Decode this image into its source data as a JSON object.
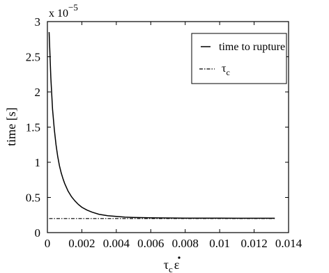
{
  "chart_data": {
    "type": "line",
    "title": "",
    "xlabel_main": "τ",
    "xlabel_sub": "c",
    "xlabel_sym": "ε",
    "ylabel": "time [s]",
    "y_multiplier_text": "x 10",
    "y_multiplier_exp": "−5",
    "xlim": [
      0,
      0.014
    ],
    "ylim": [
      0,
      3
    ],
    "y_scale_factor": 1e-05,
    "grid": false,
    "legend_position": "top-right",
    "x_ticks": [
      0,
      0.002,
      0.004,
      0.006,
      0.008,
      0.01,
      0.012,
      0.014
    ],
    "x_tick_labels": [
      "0",
      "0.002",
      "0.004",
      "0.006",
      "0.008",
      "0.01",
      "0.012",
      "0.014"
    ],
    "y_ticks": [
      0,
      0.5,
      1,
      1.5,
      2,
      2.5,
      3
    ],
    "y_tick_labels": [
      "0",
      "0.5",
      "1",
      "1.5",
      "2",
      "2.5",
      "3"
    ],
    "series": [
      {
        "name": "time to rupture",
        "style": "solid",
        "color": "#000000",
        "x": [
          0.0001,
          0.0002,
          0.0003,
          0.0004,
          0.0005,
          0.0006,
          0.0007,
          0.0008,
          0.0009,
          0.001,
          0.0012,
          0.0014,
          0.0016,
          0.0018,
          0.002,
          0.0023,
          0.0026,
          0.003,
          0.0035,
          0.004,
          0.0045,
          0.005,
          0.006,
          0.007,
          0.008,
          0.009,
          0.01,
          0.011,
          0.012,
          0.0132
        ],
        "y": [
          2.85,
          2.2,
          1.75,
          1.47,
          1.25,
          1.08,
          0.95,
          0.85,
          0.77,
          0.7,
          0.59,
          0.51,
          0.45,
          0.4,
          0.36,
          0.32,
          0.29,
          0.26,
          0.24,
          0.23,
          0.22,
          0.215,
          0.21,
          0.208,
          0.206,
          0.205,
          0.205,
          0.204,
          0.204,
          0.204
        ]
      },
      {
        "name": "τ",
        "name_sub": "c",
        "style": "dashdot",
        "color": "#000000",
        "x": [
          0.0001,
          0.0132
        ],
        "y": [
          0.2,
          0.2
        ]
      }
    ]
  }
}
